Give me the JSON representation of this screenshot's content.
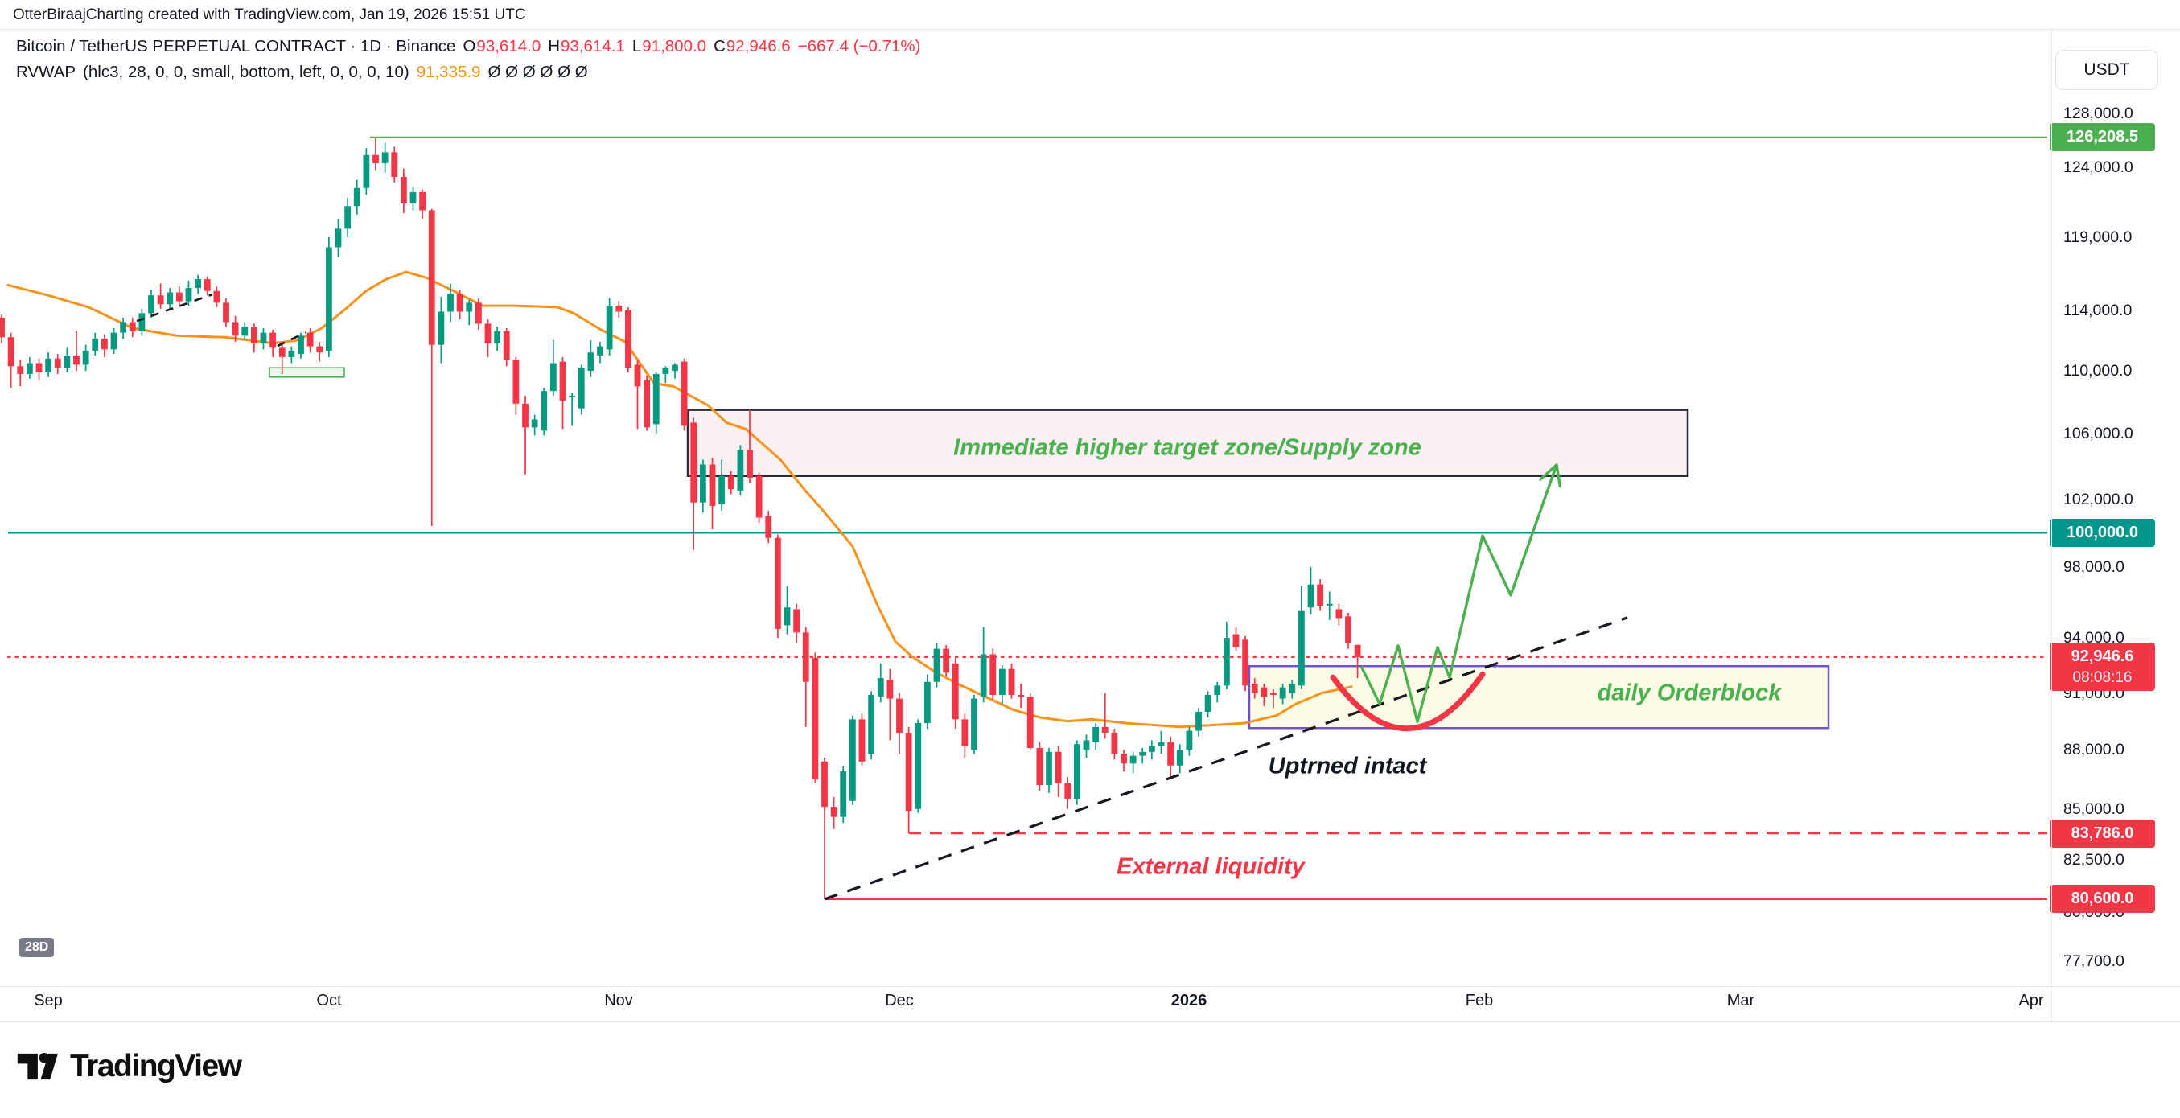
{
  "attribution": "OtterBiraajCharting created with TradingView.com, Jan 19, 2026 15:51 UTC",
  "legend": {
    "symbol_line": "Bitcoin / TetherUS PERPETUAL CONTRACT · 1D · Binance",
    "ohlc": {
      "o_label": "O",
      "o": "93,614.0",
      "h_label": "H",
      "h": "93,614.1",
      "l_label": "L",
      "l": "91,800.0",
      "c_label": "C",
      "c": "92,946.6",
      "change": "−667.4 (−0.71%)"
    },
    "indicator": {
      "name": "RVWAP",
      "params": "(hlc3, 28, 0, 0, small, bottom, left, 0, 0, 0, 10)",
      "value": "91,335.9",
      "empties": "Ø  Ø  Ø  Ø  Ø  Ø"
    }
  },
  "axis": {
    "currency_button": "USDT",
    "interval_badge": "28D",
    "y_ticks": [
      {
        "label": "128,000.0",
        "price": 128000
      },
      {
        "label": "124,000.0",
        "price": 124000
      },
      {
        "label": "119,000.0",
        "price": 119000
      },
      {
        "label": "114,000.0",
        "price": 114000
      },
      {
        "label": "110,000.0",
        "price": 110000
      },
      {
        "label": "106,000.0",
        "price": 106000
      },
      {
        "label": "102,000.0",
        "price": 102000
      },
      {
        "label": "98,000.0",
        "price": 98000
      },
      {
        "label": "94,000.0",
        "price": 94000
      },
      {
        "label": "91,000.0",
        "price": 91000
      },
      {
        "label": "88,000.0",
        "price": 88000
      },
      {
        "label": "85,000.0",
        "price": 85000
      },
      {
        "label": "82,500.0",
        "price": 82500
      },
      {
        "label": "80,000.0",
        "price": 80000
      },
      {
        "label": "77,700.0",
        "price": 77700
      }
    ],
    "price_badges": [
      {
        "label": "126,208.5",
        "price": 126208.5,
        "color": "#4caf50"
      },
      {
        "label": "100,000.0",
        "price": 100000,
        "color": "#00968c"
      },
      {
        "label": "92,946.6",
        "price": 92946.6,
        "color": "#f23645",
        "sub": "08:08:16"
      },
      {
        "label": "83,786.0",
        "price": 83786,
        "color": "#f23645"
      },
      {
        "label": "80,600.0",
        "price": 80600,
        "color": "#f23645"
      }
    ],
    "x_labels": [
      {
        "label": "Sep",
        "idx": 5,
        "bold": false
      },
      {
        "label": "Oct",
        "idx": 35,
        "bold": false
      },
      {
        "label": "Nov",
        "idx": 66,
        "bold": false
      },
      {
        "label": "Dec",
        "idx": 96,
        "bold": false
      },
      {
        "label": "2026",
        "idx": 127,
        "bold": true
      },
      {
        "label": "Feb",
        "idx": 158,
        "bold": false
      },
      {
        "label": "Mar",
        "idx": 186,
        "bold": false
      },
      {
        "label": "Apr",
        "idx": 217,
        "bold": false
      }
    ]
  },
  "annotations": {
    "supply_zone": "Immediate higher target zone/Supply zone",
    "orderblock": "daily Orderblock",
    "uptrend": "Uptrned intact",
    "liquidity": "External liquidity"
  },
  "logo_text": "TradingView",
  "colors": {
    "up": "#089981",
    "down": "#f23645",
    "rvwap": "#f7931a",
    "level_green": "#4caf50",
    "level_teal": "#00968c",
    "level_red": "#f23645",
    "trendline": "#16191f",
    "orderblock_border": "#7350c7",
    "orderblock_fill": "#fcfce6",
    "supply_border": "#2a2e39",
    "supply_fill": "#f9f0f1",
    "projection": "#4caf50"
  },
  "chart_data": {
    "type": "candlestick",
    "title": "Bitcoin / TetherUS PERPETUAL CONTRACT 1D Binance",
    "ylabel": "USDT",
    "timeframe": "1D",
    "log_scale": true,
    "start_date": "2025-08-27",
    "ohlc": [
      [
        113500,
        113700,
        111800,
        112200
      ],
      [
        112200,
        112500,
        108900,
        110300
      ],
      [
        110300,
        110700,
        109000,
        109800
      ],
      [
        109800,
        110900,
        109500,
        110500
      ],
      [
        110500,
        110800,
        109400,
        109900
      ],
      [
        109900,
        111200,
        109600,
        110800
      ],
      [
        110800,
        111100,
        109800,
        110200
      ],
      [
        110200,
        111500,
        109900,
        111000
      ],
      [
        111000,
        112600,
        110000,
        110400
      ],
      [
        110400,
        111700,
        110000,
        111300
      ],
      [
        111300,
        112500,
        111000,
        112100
      ],
      [
        112100,
        112400,
        110900,
        111400
      ],
      [
        111400,
        112800,
        111100,
        112500
      ],
      [
        112500,
        113500,
        112100,
        113200
      ],
      [
        113200,
        113500,
        112200,
        112600
      ],
      [
        112600,
        114100,
        112300,
        113800
      ],
      [
        113800,
        115400,
        113500,
        115000
      ],
      [
        115000,
        115800,
        114100,
        114400
      ],
      [
        114400,
        115500,
        114000,
        115200
      ],
      [
        115200,
        115600,
        114200,
        114600
      ],
      [
        114600,
        116000,
        114300,
        115500
      ],
      [
        115500,
        116400,
        115100,
        116100
      ],
      [
        116100,
        116300,
        115000,
        115300
      ],
      [
        115300,
        115600,
        114200,
        114500
      ],
      [
        114500,
        114800,
        112900,
        113200
      ],
      [
        113200,
        113600,
        111900,
        112300
      ],
      [
        112300,
        113200,
        112000,
        112900
      ],
      [
        112900,
        113100,
        111200,
        111800
      ],
      [
        111800,
        112800,
        111400,
        112500
      ],
      [
        112500,
        112700,
        110900,
        111500
      ],
      [
        111500,
        111800,
        109800,
        110900
      ],
      [
        110900,
        111600,
        110500,
        111300
      ],
      [
        111100,
        112500,
        110800,
        112300
      ],
      [
        112500,
        112800,
        111200,
        111600
      ],
      [
        111600,
        111900,
        110600,
        111200
      ],
      [
        111300,
        119000,
        110900,
        118300
      ],
      [
        118300,
        120300,
        117600,
        119600
      ],
      [
        119600,
        121800,
        119000,
        121200
      ],
      [
        121200,
        123100,
        120600,
        122500
      ],
      [
        122500,
        125400,
        122000,
        124900
      ],
      [
        124900,
        126208.5,
        123800,
        124300
      ],
      [
        124300,
        125800,
        123600,
        125100
      ],
      [
        125100,
        125500,
        122900,
        123300
      ],
      [
        123300,
        123900,
        120700,
        121400
      ],
      [
        121400,
        122600,
        120900,
        122200
      ],
      [
        122200,
        122400,
        120300,
        120900
      ],
      [
        120900,
        121000,
        100400,
        111700
      ],
      [
        111700,
        114900,
        110500,
        113900
      ],
      [
        113900,
        115800,
        113200,
        115100
      ],
      [
        115100,
        115400,
        113400,
        113900
      ],
      [
        113900,
        114700,
        113000,
        114500
      ],
      [
        114500,
        114800,
        112700,
        113100
      ],
      [
        113100,
        113400,
        110900,
        111800
      ],
      [
        111800,
        112900,
        111300,
        112600
      ],
      [
        112600,
        112800,
        110300,
        110700
      ],
      [
        110700,
        110900,
        107200,
        107900
      ],
      [
        107900,
        108400,
        103500,
        106400
      ],
      [
        106400,
        107200,
        105900,
        106900
      ],
      [
        106200,
        108900,
        105900,
        108700
      ],
      [
        108700,
        112000,
        108400,
        110500
      ],
      [
        110600,
        110900,
        106300,
        108100
      ],
      [
        108300,
        108600,
        106500,
        108400
      ],
      [
        107600,
        110400,
        107200,
        110200
      ],
      [
        110000,
        112000,
        109600,
        111200
      ],
      [
        111000,
        111900,
        110500,
        111600
      ],
      [
        111400,
        114800,
        111000,
        114300
      ],
      [
        114300,
        114600,
        113500,
        113900
      ],
      [
        114000,
        114200,
        109900,
        110200
      ],
      [
        110400,
        110700,
        106300,
        109000
      ],
      [
        109400,
        109700,
        106200,
        106400
      ],
      [
        106600,
        109900,
        106000,
        109800
      ],
      [
        109800,
        110300,
        109200,
        110200
      ],
      [
        110000,
        110500,
        109500,
        110400
      ],
      [
        110600,
        110800,
        106200,
        106500
      ],
      [
        106700,
        107000,
        99000,
        101800
      ],
      [
        101800,
        104400,
        101200,
        104100
      ],
      [
        104100,
        104500,
        100200,
        101600
      ],
      [
        101700,
        104400,
        101300,
        103400
      ],
      [
        103400,
        103700,
        102300,
        102600
      ],
      [
        102500,
        105300,
        102200,
        105000
      ],
      [
        105000,
        107500,
        103000,
        103300
      ],
      [
        103400,
        103600,
        100600,
        100900
      ],
      [
        101000,
        101300,
        99400,
        99700
      ],
      [
        99700,
        99900,
        94000,
        94500
      ],
      [
        94700,
        96900,
        94200,
        95700
      ],
      [
        95600,
        95900,
        93700,
        94300
      ],
      [
        94300,
        94600,
        89200,
        91600
      ],
      [
        92900,
        93200,
        86300,
        86500
      ],
      [
        87400,
        87600,
        80600,
        85100
      ],
      [
        85100,
        85600,
        84000,
        84600
      ],
      [
        84600,
        87200,
        84300,
        86900
      ],
      [
        85400,
        89800,
        85200,
        89600
      ],
      [
        89600,
        89900,
        87200,
        87400
      ],
      [
        87800,
        91100,
        87500,
        90900
      ],
      [
        90800,
        92600,
        90500,
        91800
      ],
      [
        91700,
        92300,
        88500,
        90700
      ],
      [
        90700,
        91000,
        87800,
        88900
      ],
      [
        88900,
        89200,
        83786,
        84900
      ],
      [
        85000,
        89600,
        84800,
        89400
      ],
      [
        89400,
        92000,
        89100,
        91600
      ],
      [
        91600,
        93700,
        91300,
        93400
      ],
      [
        93400,
        93600,
        91900,
        92100
      ],
      [
        92600,
        92900,
        89100,
        89600
      ],
      [
        89600,
        89900,
        87600,
        88200
      ],
      [
        88000,
        90900,
        87800,
        90700
      ],
      [
        90800,
        94600,
        90500,
        93100
      ],
      [
        93100,
        93400,
        90600,
        90900
      ],
      [
        90900,
        92500,
        90400,
        92300
      ],
      [
        92300,
        92600,
        90700,
        90900
      ],
      [
        90900,
        91500,
        90200,
        90800
      ],
      [
        90800,
        91000,
        88000,
        88100
      ],
      [
        88100,
        88400,
        85900,
        86200
      ],
      [
        86200,
        88100,
        85800,
        87900
      ],
      [
        87900,
        88200,
        85600,
        86300
      ],
      [
        86300,
        86600,
        85000,
        85500
      ],
      [
        85500,
        88500,
        85200,
        88300
      ],
      [
        88000,
        88800,
        87600,
        88500
      ],
      [
        88400,
        89400,
        88000,
        89200
      ],
      [
        89200,
        91000,
        88600,
        88900
      ],
      [
        88900,
        89100,
        87500,
        87800
      ],
      [
        87800,
        88000,
        86900,
        87300
      ],
      [
        87300,
        87900,
        86800,
        87700
      ],
      [
        87700,
        88100,
        87300,
        87900
      ],
      [
        87900,
        88500,
        87500,
        88200
      ],
      [
        88200,
        89000,
        87800,
        88400
      ],
      [
        88400,
        88700,
        86500,
        87200
      ],
      [
        87200,
        88300,
        86800,
        88000
      ],
      [
        88000,
        89200,
        87700,
        89000
      ],
      [
        89000,
        90200,
        88700,
        90000
      ],
      [
        90000,
        91100,
        89700,
        90900
      ],
      [
        90900,
        91600,
        90500,
        91400
      ],
      [
        91400,
        94900,
        91200,
        94000
      ],
      [
        94200,
        94600,
        93300,
        93500
      ],
      [
        93900,
        94100,
        91100,
        91400
      ],
      [
        91500,
        91800,
        90700,
        91000
      ],
      [
        91300,
        91500,
        90300,
        90800
      ],
      [
        91000,
        91200,
        90200,
        90900
      ],
      [
        90700,
        91500,
        90400,
        91300
      ],
      [
        91000,
        91700,
        90700,
        91500
      ],
      [
        91400,
        96900,
        91200,
        95500
      ],
      [
        95700,
        98000,
        95300,
        97000
      ],
      [
        97000,
        97300,
        95500,
        95800
      ],
      [
        95900,
        96600,
        95000,
        95900
      ],
      [
        95600,
        95900,
        94700,
        95100
      ],
      [
        95200,
        95400,
        93400,
        93700
      ],
      [
        93614.0,
        93614.1,
        91800.0,
        92946.6
      ]
    ],
    "rvwap_line": [
      [
        10,
        115700
      ],
      [
        60,
        115000
      ],
      [
        110,
        114200
      ],
      [
        165,
        112800
      ],
      [
        220,
        112300
      ],
      [
        280,
        112200
      ],
      [
        340,
        111800
      ],
      [
        370,
        112000
      ],
      [
        400,
        112800
      ],
      [
        430,
        114100
      ],
      [
        455,
        115300
      ],
      [
        480,
        116100
      ],
      [
        505,
        116600
      ],
      [
        530,
        116200
      ],
      [
        560,
        115400
      ],
      [
        600,
        114300
      ],
      [
        640,
        114300
      ],
      [
        693,
        114200
      ],
      [
        713,
        113800
      ],
      [
        747,
        112700
      ],
      [
        777,
        111900
      ],
      [
        813,
        109200
      ],
      [
        837,
        109000
      ],
      [
        880,
        107800
      ],
      [
        903,
        106700
      ],
      [
        927,
        106300
      ],
      [
        970,
        104400
      ],
      [
        1003,
        102400
      ],
      [
        1020,
        101500
      ],
      [
        1060,
        99200
      ],
      [
        1090,
        95900
      ],
      [
        1113,
        93800
      ],
      [
        1133,
        93000
      ],
      [
        1160,
        92200
      ],
      [
        1190,
        91500
      ],
      [
        1230,
        90700
      ],
      [
        1260,
        90100
      ],
      [
        1293,
        89700
      ],
      [
        1327,
        89500
      ],
      [
        1357,
        89600
      ],
      [
        1400,
        89400
      ],
      [
        1467,
        89200
      ],
      [
        1510,
        89300
      ],
      [
        1547,
        89400
      ],
      [
        1587,
        89800
      ],
      [
        1610,
        90400
      ],
      [
        1643,
        91000
      ],
      [
        1680,
        91335.9
      ]
    ],
    "levels": [
      {
        "price": 126208.5,
        "x1": 460,
        "style": "solid",
        "color": "#4caf50",
        "width": 2
      },
      {
        "price": 100000,
        "x1": 10,
        "style": "solid",
        "color": "#00968c",
        "width": 2.2
      },
      {
        "price": 92946.6,
        "x1": 10,
        "style": "dotted",
        "color": "#f23645",
        "width": 2.2
      },
      {
        "price": 83786,
        "x1": 1130,
        "style": "dashed",
        "color": "#f23645",
        "width": 2.5
      },
      {
        "price": 80600,
        "x1": 1025,
        "style": "solid",
        "color": "#f23645",
        "width": 2.2
      }
    ],
    "boxes": [
      {
        "name": "supply_zone",
        "x1": 855,
        "x2": 2098,
        "p_top": 107500,
        "p_bottom": 103400
      },
      {
        "name": "orderblock",
        "x1": 1553,
        "x2": 2273,
        "p_top": 92450,
        "p_bottom": 89140
      },
      {
        "name": "accumulation",
        "x1": 335,
        "x2": 428,
        "p_top": 110200,
        "p_bottom": 109600
      }
    ],
    "trendline": {
      "x1": 1025,
      "p1": 80600,
      "x2": 2023,
      "p2": 95130
    },
    "mini_dashes": [
      [
        [
          170,
          113270
        ],
        [
          264,
          115060
        ]
      ],
      [
        [
          345,
          111620
        ],
        [
          380,
          112520
        ]
      ]
    ],
    "projection_zigzag": [
      [
        1692,
        92450
      ],
      [
        1715,
        90420
      ],
      [
        1738,
        93560
      ],
      [
        1762,
        89480
      ],
      [
        1787,
        93470
      ],
      [
        1802,
        91840
      ],
      [
        1843,
        99830
      ],
      [
        1878,
        96400
      ],
      [
        1935,
        104080
      ]
    ],
    "accumulation_arc": {
      "x1": 1657,
      "p1": 91840,
      "cx": 1750,
      "cp": 86400,
      "x2": 1843,
      "p2": 92010
    }
  }
}
